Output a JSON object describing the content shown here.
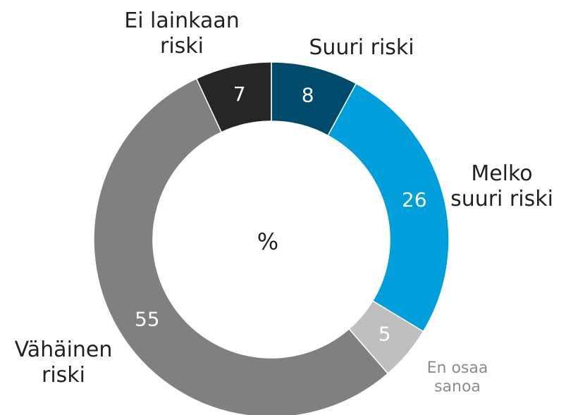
{
  "chart_data": {
    "type": "donut",
    "center_label": "%",
    "categories": [
      "Suuri riski",
      "Melko\nsuuri riski",
      "En osaa\nsanoa",
      "Vähäinen\nriski",
      "Ei lainkaan\nriski"
    ],
    "values": [
      8,
      26,
      5,
      55,
      7
    ],
    "colors": [
      "#004a6b",
      "#009fdb",
      "#bfbfbf",
      "#808080",
      "#262626"
    ],
    "label_colors": [
      "#222222",
      "#222222",
      "#8c8c8c",
      "#222222",
      "#222222"
    ]
  }
}
